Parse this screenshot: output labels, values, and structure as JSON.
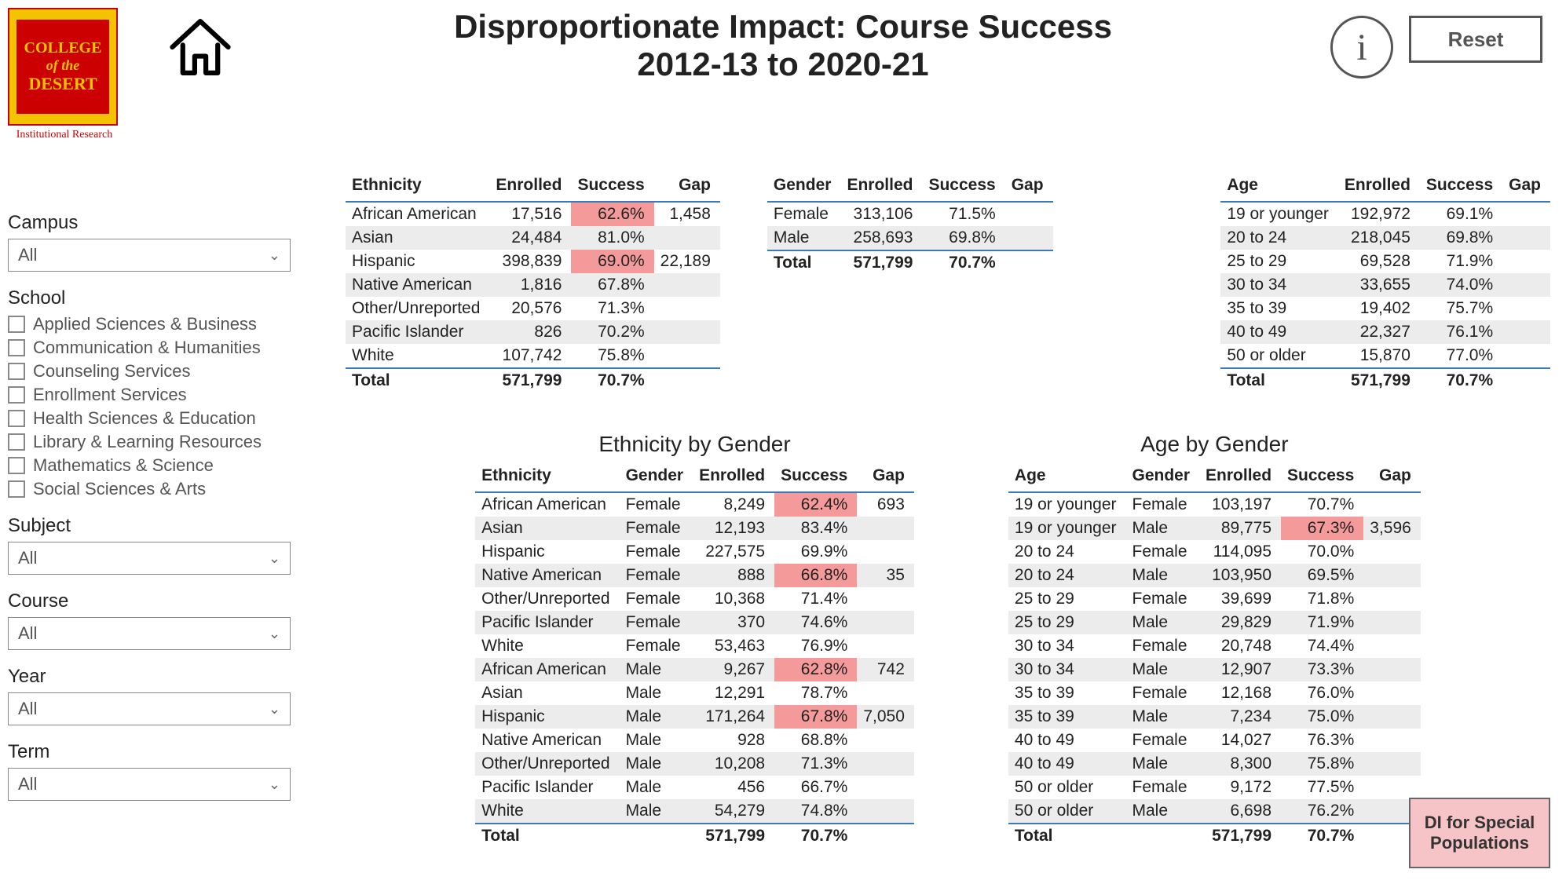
{
  "header": {
    "title_line1": "Disproportionate Impact: Course Success",
    "title_line2": "2012-13 to 2020-21",
    "logo_line1": "COLLEGE",
    "logo_line2": "of the",
    "logo_line3": "DESERT",
    "logo_subtitle": "Institutional Research",
    "reset_label": "Reset",
    "info_label": "i"
  },
  "colors": {
    "highlight": "#f49a9a",
    "stripe": "#ececec",
    "header_rule": "#3a7ab8",
    "logo_bg": "#f3c300",
    "logo_fg": "#c00000"
  },
  "filters": {
    "campus": {
      "label": "Campus",
      "value": "All"
    },
    "school": {
      "label": "School",
      "options": [
        "Applied Sciences & Business",
        "Communication & Humanities",
        "Counseling Services",
        "Enrollment Services",
        "Health Sciences & Education",
        "Library & Learning Resources",
        "Mathematics & Science",
        "Social Sciences & Arts"
      ]
    },
    "subject": {
      "label": "Subject",
      "value": "All"
    },
    "course": {
      "label": "Course",
      "value": "All"
    },
    "year": {
      "label": "Year",
      "value": "All"
    },
    "term": {
      "label": "Term",
      "value": "All"
    }
  },
  "tables": {
    "ethnicity": {
      "columns": [
        "Ethnicity",
        "Enrolled",
        "Success",
        "Gap"
      ],
      "rows": [
        {
          "c": [
            "African American",
            "17,516",
            "62.6%",
            "1,458"
          ],
          "hl": [
            2
          ]
        },
        {
          "c": [
            "Asian",
            "24,484",
            "81.0%",
            ""
          ],
          "hl": []
        },
        {
          "c": [
            "Hispanic",
            "398,839",
            "69.0%",
            "22,189"
          ],
          "hl": [
            2
          ]
        },
        {
          "c": [
            "Native American",
            "1,816",
            "67.8%",
            ""
          ],
          "hl": []
        },
        {
          "c": [
            "Other/Unreported",
            "20,576",
            "71.3%",
            ""
          ],
          "hl": []
        },
        {
          "c": [
            "Pacific Islander",
            "826",
            "70.2%",
            ""
          ],
          "hl": []
        },
        {
          "c": [
            "White",
            "107,742",
            "75.8%",
            ""
          ],
          "hl": []
        }
      ],
      "total": [
        "Total",
        "571,799",
        "70.7%",
        ""
      ]
    },
    "gender": {
      "columns": [
        "Gender",
        "Enrolled",
        "Success",
        "Gap"
      ],
      "rows": [
        {
          "c": [
            "Female",
            "313,106",
            "71.5%",
            ""
          ],
          "hl": []
        },
        {
          "c": [
            "Male",
            "258,693",
            "69.8%",
            ""
          ],
          "hl": []
        }
      ],
      "total": [
        "Total",
        "571,799",
        "70.7%",
        ""
      ]
    },
    "age": {
      "columns": [
        "Age",
        "Enrolled",
        "Success",
        "Gap"
      ],
      "rows": [
        {
          "c": [
            "19 or younger",
            "192,972",
            "69.1%",
            ""
          ],
          "hl": []
        },
        {
          "c": [
            "20 to 24",
            "218,045",
            "69.8%",
            ""
          ],
          "hl": []
        },
        {
          "c": [
            "25 to 29",
            "69,528",
            "71.9%",
            ""
          ],
          "hl": []
        },
        {
          "c": [
            "30 to 34",
            "33,655",
            "74.0%",
            ""
          ],
          "hl": []
        },
        {
          "c": [
            "35 to 39",
            "19,402",
            "75.7%",
            ""
          ],
          "hl": []
        },
        {
          "c": [
            "40 to 49",
            "22,327",
            "76.1%",
            ""
          ],
          "hl": []
        },
        {
          "c": [
            "50 or older",
            "15,870",
            "77.0%",
            ""
          ],
          "hl": []
        }
      ],
      "total": [
        "Total",
        "571,799",
        "70.7%",
        ""
      ]
    },
    "ethnicity_by_gender": {
      "title": "Ethnicity by Gender",
      "columns": [
        "Ethnicity",
        "Gender",
        "Enrolled",
        "Success",
        "Gap"
      ],
      "rows": [
        {
          "c": [
            "African American",
            "Female",
            "8,249",
            "62.4%",
            "693"
          ],
          "hl": [
            3
          ]
        },
        {
          "c": [
            "Asian",
            "Female",
            "12,193",
            "83.4%",
            ""
          ],
          "hl": []
        },
        {
          "c": [
            "Hispanic",
            "Female",
            "227,575",
            "69.9%",
            ""
          ],
          "hl": []
        },
        {
          "c": [
            "Native American",
            "Female",
            "888",
            "66.8%",
            "35"
          ],
          "hl": [
            3
          ]
        },
        {
          "c": [
            "Other/Unreported",
            "Female",
            "10,368",
            "71.4%",
            ""
          ],
          "hl": []
        },
        {
          "c": [
            "Pacific Islander",
            "Female",
            "370",
            "74.6%",
            ""
          ],
          "hl": []
        },
        {
          "c": [
            "White",
            "Female",
            "53,463",
            "76.9%",
            ""
          ],
          "hl": []
        },
        {
          "c": [
            "African American",
            "Male",
            "9,267",
            "62.8%",
            "742"
          ],
          "hl": [
            3
          ]
        },
        {
          "c": [
            "Asian",
            "Male",
            "12,291",
            "78.7%",
            ""
          ],
          "hl": []
        },
        {
          "c": [
            "Hispanic",
            "Male",
            "171,264",
            "67.8%",
            "7,050"
          ],
          "hl": [
            3
          ]
        },
        {
          "c": [
            "Native American",
            "Male",
            "928",
            "68.8%",
            ""
          ],
          "hl": []
        },
        {
          "c": [
            "Other/Unreported",
            "Male",
            "10,208",
            "71.3%",
            ""
          ],
          "hl": []
        },
        {
          "c": [
            "Pacific Islander",
            "Male",
            "456",
            "66.7%",
            ""
          ],
          "hl": []
        },
        {
          "c": [
            "White",
            "Male",
            "54,279",
            "74.8%",
            ""
          ],
          "hl": []
        }
      ],
      "total": [
        "Total",
        "",
        "571,799",
        "70.7%",
        ""
      ]
    },
    "age_by_gender": {
      "title": "Age by Gender",
      "columns": [
        "Age",
        "Gender",
        "Enrolled",
        "Success",
        "Gap"
      ],
      "rows": [
        {
          "c": [
            "19 or younger",
            "Female",
            "103,197",
            "70.7%",
            ""
          ],
          "hl": []
        },
        {
          "c": [
            "19 or younger",
            "Male",
            "89,775",
            "67.3%",
            "3,596"
          ],
          "hl": [
            3
          ]
        },
        {
          "c": [
            "20 to 24",
            "Female",
            "114,095",
            "70.0%",
            ""
          ],
          "hl": []
        },
        {
          "c": [
            "20 to 24",
            "Male",
            "103,950",
            "69.5%",
            ""
          ],
          "hl": []
        },
        {
          "c": [
            "25 to 29",
            "Female",
            "39,699",
            "71.8%",
            ""
          ],
          "hl": []
        },
        {
          "c": [
            "25 to 29",
            "Male",
            "29,829",
            "71.9%",
            ""
          ],
          "hl": []
        },
        {
          "c": [
            "30 to 34",
            "Female",
            "20,748",
            "74.4%",
            ""
          ],
          "hl": []
        },
        {
          "c": [
            "30 to 34",
            "Male",
            "12,907",
            "73.3%",
            ""
          ],
          "hl": []
        },
        {
          "c": [
            "35 to 39",
            "Female",
            "12,168",
            "76.0%",
            ""
          ],
          "hl": []
        },
        {
          "c": [
            "35 to 39",
            "Male",
            "7,234",
            "75.0%",
            ""
          ],
          "hl": []
        },
        {
          "c": [
            "40 to 49",
            "Female",
            "14,027",
            "76.3%",
            ""
          ],
          "hl": []
        },
        {
          "c": [
            "40 to 49",
            "Male",
            "8,300",
            "75.8%",
            ""
          ],
          "hl": []
        },
        {
          "c": [
            "50 or older",
            "Female",
            "9,172",
            "77.5%",
            ""
          ],
          "hl": []
        },
        {
          "c": [
            "50 or older",
            "Male",
            "6,698",
            "76.2%",
            ""
          ],
          "hl": []
        }
      ],
      "total": [
        "Total",
        "",
        "571,799",
        "70.7%",
        ""
      ]
    }
  },
  "di_special_label": "DI for Special Populations"
}
